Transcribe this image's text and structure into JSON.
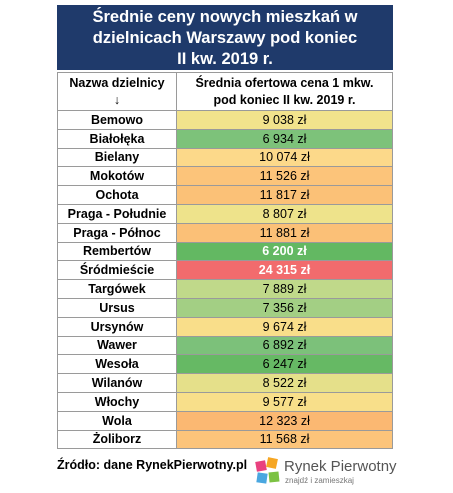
{
  "title": [
    "Średnie ceny nowych mieszkań w",
    "dzielnicach Warszawy pod koniec",
    "II kw. 2019 r."
  ],
  "table": {
    "header": [
      [
        "Nazwa dzielnicy",
        "↓"
      ],
      [
        "Średnia ofertowa cena 1 mkw.",
        "pod koniec II kw. 2019 r."
      ]
    ],
    "rows": [
      {
        "name": "Bemowo",
        "price": "9 038 zł",
        "color": "#f2e38c"
      },
      {
        "name": "Białołęka",
        "price": "6 934 zł",
        "color": "#7dc27a"
      },
      {
        "name": "Bielany",
        "price": "10 074 zł",
        "color": "#fcd98a"
      },
      {
        "name": "Mokotów",
        "price": "11 526 zł",
        "color": "#fcc47a"
      },
      {
        "name": "Ochota",
        "price": "11 817 zł",
        "color": "#fbc177"
      },
      {
        "name": "Praga - Południe",
        "price": "8 807 zł",
        "color": "#eee38b"
      },
      {
        "name": "Praga - Północ",
        "price": "11 881 zł",
        "color": "#fbc077"
      },
      {
        "name": "Rembertów",
        "price": "6 200 zł",
        "color": "#63b862",
        "text_color": "#ffffff"
      },
      {
        "name": "Śródmieście",
        "price": "24 315 zł",
        "color": "#f26b6d",
        "text_color": "#ffffff"
      },
      {
        "name": "Targówek",
        "price": "7 889 zł",
        "color": "#c0d98a"
      },
      {
        "name": "Ursus",
        "price": "7 356 zł",
        "color": "#a3cf84"
      },
      {
        "name": "Ursynów",
        "price": "9 674 zł",
        "color": "#f9de8a"
      },
      {
        "name": "Wawer",
        "price": "6 892 zł",
        "color": "#7cc17a"
      },
      {
        "name": "Wesoła",
        "price": "6 247 zł",
        "color": "#66b964"
      },
      {
        "name": "Wilanów",
        "price": "8 522 zł",
        "color": "#e5e08a"
      },
      {
        "name": "Włochy",
        "price": "9 577 zł",
        "color": "#f8df8a"
      },
      {
        "name": "Wola",
        "price": "12 323 zł",
        "color": "#fbb872"
      },
      {
        "name": "Żoliborz",
        "price": "11 568 zł",
        "color": "#fcc47a"
      }
    ]
  },
  "source": "Źródło: dane RynekPierwotny.pl",
  "logo": {
    "name": "Rynek Pierwotny",
    "tagline": "znajdź i zamieszkaj"
  }
}
